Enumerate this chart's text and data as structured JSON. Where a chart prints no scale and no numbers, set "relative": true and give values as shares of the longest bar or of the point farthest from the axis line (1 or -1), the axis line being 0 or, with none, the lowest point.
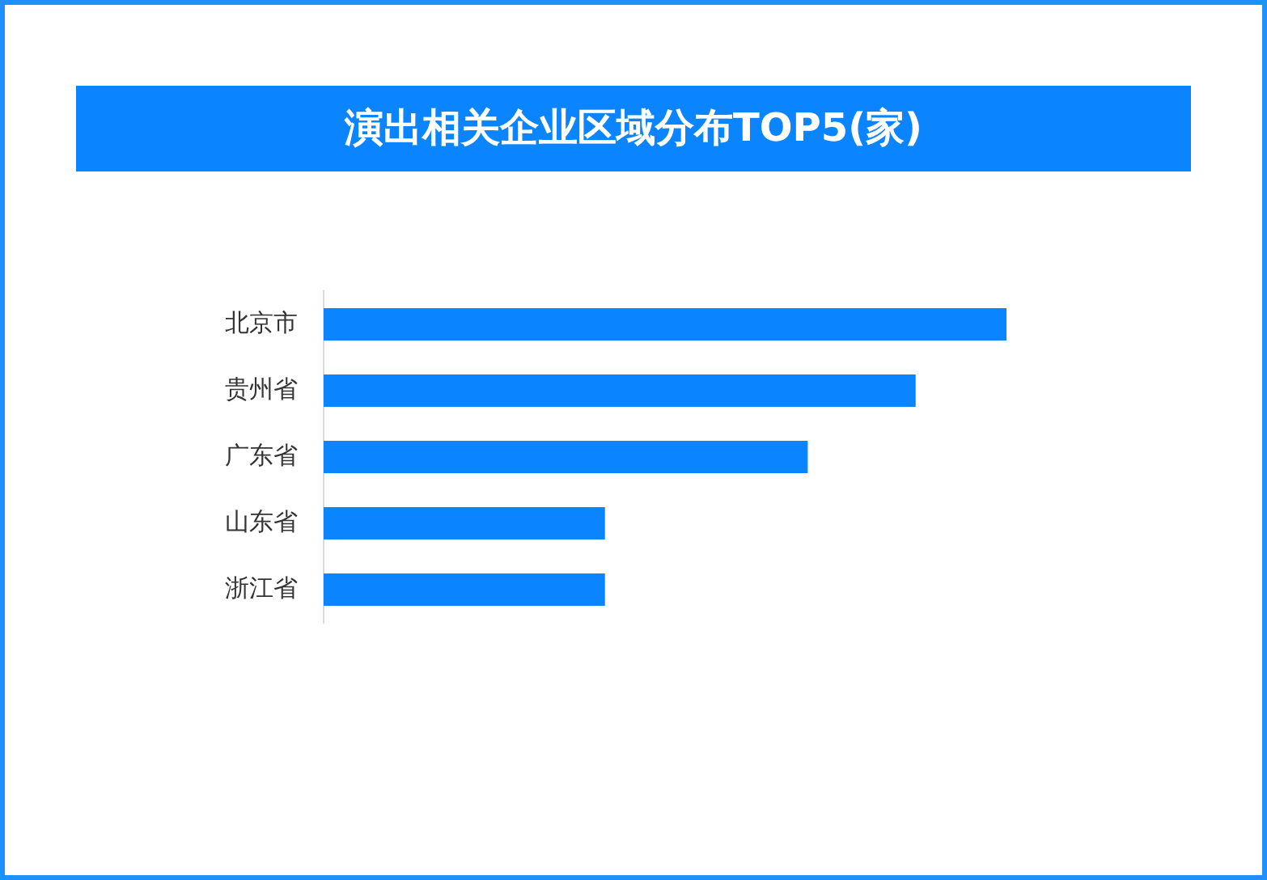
{
  "chart_data": {
    "type": "bar",
    "orientation": "horizontal",
    "relative": true,
    "title": "演出相关企业区域分布TOP5(家)",
    "categories": [
      "北京市",
      "贵州省",
      "广东省",
      "山东省",
      "浙江省"
    ],
    "values": [
      1,
      0.867,
      0.709,
      0.412,
      0.412
    ],
    "color": "#0a84ff"
  }
}
